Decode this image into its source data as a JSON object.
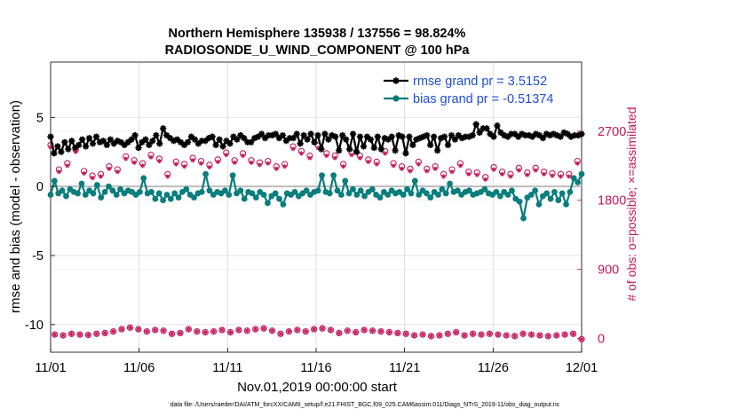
{
  "chart_data": {
    "type": "line",
    "title": "Northern Hemisphere 135938 / 137556 = 98.824%",
    "subtitle": "RADIOSONDE_U_WIND_COMPONENT @ 100 hPa",
    "xlabel": "Nov.01,2019 00:00:00 start",
    "ylabel": "rmse and bias (model - observation)",
    "ylabel_right": "# of obs: o=possible; ×=assimilated",
    "x_ticks": [
      "11/01",
      "11/06",
      "11/11",
      "11/16",
      "11/21",
      "11/26",
      "12/01"
    ],
    "y_ticks": [
      "-10",
      "-5",
      "0",
      "5"
    ],
    "y_right_ticks": [
      "0",
      "900",
      "1800",
      "2700"
    ],
    "xlim_days": [
      0,
      30
    ],
    "ylim": [
      -12,
      9
    ],
    "ylim_right": [
      -180,
      3600
    ],
    "grid": true,
    "legend_position": "top-right",
    "series": [
      {
        "name": "rmse grand pr = 3.5152",
        "color": "#000000",
        "marker": "star",
        "values": [
          3.6,
          2.4,
          2.9,
          2.5,
          3.2,
          2.7,
          3.3,
          2.8,
          3.0,
          3.4,
          2.9,
          3.5,
          3.1,
          3.6,
          3.2,
          3.3,
          3.0,
          3.4,
          3.1,
          3.3,
          3.2,
          3.0,
          3.2,
          3.4,
          3.7,
          2.8,
          3.2,
          3.4,
          3.0,
          3.3,
          3.7,
          3.1,
          4.2,
          3.7,
          3.5,
          3.3,
          3.4,
          3.2,
          3.0,
          3.2,
          3.6,
          3.4,
          3.1,
          3.3,
          3.3,
          3.5,
          3.6,
          3.0,
          3.4,
          2.9,
          3.3,
          3.1,
          3.6,
          3.4,
          3.7,
          3.5,
          3.2,
          3.2,
          3.5,
          3.6,
          3.8,
          3.5,
          3.7,
          3.7,
          3.8,
          3.5,
          3.7,
          3.3,
          3.5,
          3.5,
          3.8,
          3.1,
          3.7,
          3.4,
          3.8,
          3.2,
          3.7,
          2.7,
          3.8,
          3.4,
          3.7,
          3.6,
          2.6,
          3.7,
          3.4,
          2.7,
          3.8,
          2.5,
          3.6,
          2.9,
          3.6,
          3.4,
          2.8,
          3.6,
          2.7,
          3.5,
          3.4,
          3.6,
          2.6,
          3.7,
          3.6,
          2.4,
          3.6,
          3.0,
          3.4,
          3.5,
          3.6,
          3.7,
          3.0,
          3.6,
          2.6,
          3.5,
          3.6,
          3.0,
          3.7,
          3.4,
          3.7,
          3.5,
          3.6,
          3.6,
          3.7,
          4.5,
          3.9,
          4.2,
          4.2,
          3.8,
          3.6,
          4.4,
          3.9,
          3.7,
          3.6,
          3.8,
          3.8,
          3.6,
          3.8,
          3.7,
          3.7,
          3.6,
          3.8,
          3.7,
          3.5,
          3.8,
          3.7,
          3.8,
          3.7,
          3.6,
          3.9,
          3.8,
          3.6,
          3.7,
          3.7,
          3.8
        ]
      },
      {
        "name": "bias grand pr = -0.51374",
        "color": "#0a7d7d",
        "marker": "dot",
        "values": [
          -0.6,
          0.4,
          -0.5,
          -0.3,
          -0.7,
          -0.2,
          -0.4,
          -0.5,
          0.2,
          -0.6,
          -0.3,
          -0.5,
          0.1,
          -0.8,
          -0.4,
          0.0,
          -0.3,
          -0.6,
          -0.2,
          -0.5,
          -0.3,
          -0.4,
          -0.6,
          -0.4,
          0.6,
          -0.5,
          -0.4,
          -0.9,
          -0.5,
          -1.0,
          -0.6,
          -0.9,
          -0.5,
          -0.8,
          -0.4,
          -0.2,
          -0.6,
          -0.8,
          -0.5,
          -0.4,
          0.9,
          -0.3,
          -0.6,
          -0.4,
          -0.5,
          -0.3,
          -0.6,
          0.8,
          -0.5,
          -0.3,
          -0.9,
          -0.4,
          -0.5,
          -0.8,
          -0.4,
          -0.6,
          -1.2,
          -0.7,
          -0.5,
          -0.9,
          -1.3,
          -0.5,
          -0.6,
          -0.4,
          -0.7,
          -0.5,
          -0.3,
          -0.6,
          -0.4,
          -0.3,
          0.8,
          -0.4,
          -0.5,
          0.8,
          -0.3,
          -0.6,
          0.4,
          -0.5,
          -0.2,
          -0.6,
          -0.3,
          -0.7,
          -0.4,
          -0.2,
          -0.6,
          -0.8,
          -0.4,
          -0.6,
          -0.3,
          -0.5,
          -0.4,
          -0.6,
          -0.2,
          -0.5,
          0.4,
          -0.6,
          -0.3,
          -0.5,
          -0.8,
          -0.4,
          -0.6,
          -0.2,
          -0.5,
          0.2,
          -0.4,
          -0.3,
          -0.6,
          -0.4,
          -0.3,
          -0.6,
          -0.5,
          -0.4,
          -0.2,
          -0.5,
          -0.6,
          -0.4,
          -0.7,
          -0.4,
          -0.6,
          -0.3,
          -0.9,
          -1.1,
          -2.3,
          -0.8,
          -0.6,
          -0.3,
          -1.3,
          -0.7,
          -0.5,
          -0.9,
          -0.4,
          -1.0,
          -0.5,
          -1.3,
          -0.4,
          0.6,
          0.3,
          0.9
        ]
      },
      {
        "name": "possible",
        "axis": "right",
        "color": "#c2185b",
        "marker": "circle",
        "values": [
          2520,
          50,
          2200,
          40,
          2280,
          60,
          2460,
          50,
          2180,
          45,
          2120,
          60,
          2140,
          70,
          2240,
          90,
          2200,
          120,
          2370,
          140,
          2320,
          120,
          2280,
          90,
          2390,
          110,
          2340,
          100,
          2140,
          60,
          2300,
          70,
          2270,
          120,
          2350,
          90,
          2310,
          80,
          2260,
          90,
          2330,
          110,
          2420,
          80,
          2320,
          110,
          2410,
          100,
          2320,
          120,
          2290,
          130,
          2310,
          100,
          2240,
          60,
          2270,
          90,
          2500,
          110,
          2440,
          90,
          2380,
          120,
          2510,
          130,
          2410,
          110,
          2380,
          70,
          2270,
          100,
          2420,
          80,
          2380,
          110,
          2330,
          100,
          2300,
          90,
          2440,
          80,
          2280,
          70,
          2240,
          60,
          2210,
          40,
          2300,
          50,
          2210,
          30,
          2240,
          40,
          2140,
          60,
          2200,
          80,
          2280,
          40,
          2170,
          60,
          2160,
          50,
          2100,
          60,
          2230,
          50,
          2170,
          40,
          2140,
          30,
          2220,
          60,
          2160,
          50,
          2220,
          40,
          2170,
          30,
          2150,
          40,
          2140,
          50,
          2140,
          60,
          2310,
          -10
        ]
      },
      {
        "name": "assimilated",
        "axis": "right",
        "color": "#c2185b",
        "marker": "x",
        "values": [
          2490,
          50,
          2170,
          40,
          2250,
          60,
          2430,
          50,
          2150,
          45,
          2090,
          60,
          2110,
          70,
          2210,
          90,
          2170,
          120,
          2340,
          140,
          2290,
          120,
          2250,
          90,
          2360,
          110,
          2310,
          100,
          2110,
          60,
          2270,
          70,
          2240,
          120,
          2320,
          90,
          2280,
          80,
          2230,
          90,
          2300,
          110,
          2390,
          80,
          2290,
          110,
          2380,
          100,
          2290,
          120,
          2260,
          130,
          2280,
          100,
          2210,
          60,
          2240,
          90,
          2470,
          110,
          2410,
          90,
          2350,
          120,
          2480,
          130,
          2380,
          110,
          2350,
          70,
          2240,
          100,
          2390,
          80,
          2350,
          110,
          2300,
          100,
          2270,
          90,
          2410,
          80,
          2250,
          70,
          2210,
          60,
          2180,
          40,
          2270,
          50,
          2180,
          30,
          2210,
          40,
          2110,
          60,
          2170,
          80,
          2250,
          40,
          2140,
          60,
          2130,
          50,
          2070,
          60,
          2200,
          50,
          2140,
          40,
          2110,
          30,
          2190,
          60,
          2130,
          50,
          2190,
          40,
          2140,
          30,
          2120,
          40,
          2110,
          50,
          2110,
          60,
          2280,
          -10
        ]
      }
    ],
    "footer": "data file: /Users/raeder/DAI/ATM_forcXX/CAM6_setup/f.e21.FHIST_BGC.f09_025.CAM6assim.011/Diags_NTrS_2019-11/obs_diag_output.nc"
  }
}
